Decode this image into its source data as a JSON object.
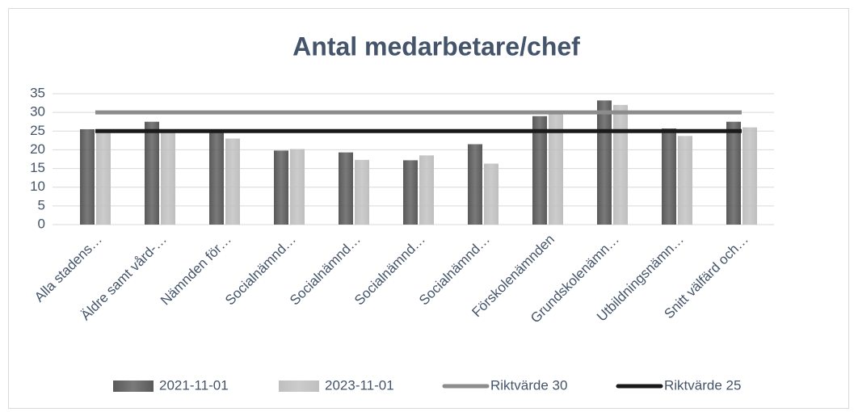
{
  "chart_data": {
    "type": "bar",
    "title": "Antal medarbetare/chef",
    "categories": [
      "Alla stadens…",
      "Äldre samt vård-…",
      "Nämnden för…",
      "Socialnämnd…",
      "Socialnämnd…",
      "Socialnämnd…",
      "Socialnämnd…",
      "Förskolenämnden",
      "Grundskolenämn…",
      "Utbildningsnämn…",
      "Snitt välfärd och…"
    ],
    "series": [
      {
        "name": "2021-11-01",
        "type": "bar",
        "color": "#595959",
        "values": [
          25.5,
          27.5,
          25.5,
          19.8,
          19.3,
          17.2,
          21.5,
          29,
          33.2,
          25.7,
          27.5
        ]
      },
      {
        "name": "2023-11-01",
        "type": "bar",
        "color": "#bfbfbf",
        "values": [
          24.5,
          25,
          23,
          20.2,
          17.3,
          18.5,
          16.3,
          29.5,
          32,
          23.7,
          26
        ]
      },
      {
        "name": "Riktvärde 30",
        "type": "line",
        "color": "#8c8c8c",
        "values": [
          30,
          30,
          30,
          30,
          30,
          30,
          30,
          30,
          30,
          30,
          30
        ]
      },
      {
        "name": "Riktvärde 25",
        "type": "line",
        "color": "#1a1a1a",
        "values": [
          25,
          25,
          25,
          25,
          25,
          25,
          25,
          25,
          25,
          25,
          25
        ]
      }
    ],
    "ylim": [
      0,
      35
    ],
    "yticks": [
      0,
      5,
      10,
      15,
      20,
      25,
      30,
      35
    ],
    "grid": true,
    "legend": "bottom"
  }
}
